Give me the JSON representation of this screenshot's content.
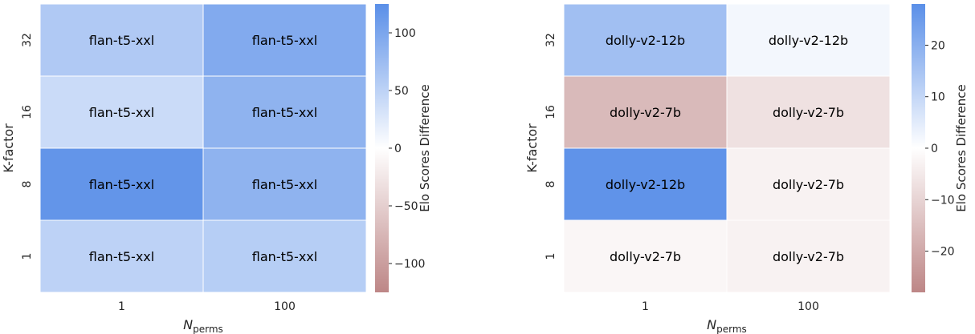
{
  "colors": {
    "negative": "#bd8686",
    "zero": "#ffffff",
    "positive": "#5a8fe8",
    "cell_border": "#ffffff",
    "text": "#262626"
  },
  "chart_data": [
    {
      "type": "heatmap",
      "x_categories": [
        "1",
        "100"
      ],
      "y_categories": [
        "32",
        "16",
        "8",
        "1"
      ],
      "values": [
        [
          60,
          95
        ],
        [
          40,
          85
        ],
        [
          118,
          85
        ],
        [
          50,
          55
        ]
      ],
      "cell_labels": [
        [
          "flan-t5-xxl",
          "flan-t5-xxl"
        ],
        [
          "flan-t5-xxl",
          "flan-t5-xxl"
        ],
        [
          "flan-t5-xxl",
          "flan-t5-xxl"
        ],
        [
          "flan-t5-xxl",
          "flan-t5-xxl"
        ]
      ],
      "xlabel": "N",
      "xlabel_sub": "perms",
      "ylabel": "K-factor",
      "colorbar": {
        "label": "Elo Scores Difference",
        "range": [
          -125,
          125
        ],
        "ticks": [
          100,
          50,
          0,
          -50,
          -100
        ],
        "tick_labels": [
          "100",
          "50",
          "0",
          "−50",
          "−100"
        ]
      }
    },
    {
      "type": "heatmap",
      "x_categories": [
        "1",
        "100"
      ],
      "y_categories": [
        "32",
        "16",
        "8",
        "1"
      ],
      "values": [
        [
          16,
          2
        ],
        [
          -16,
          -7
        ],
        [
          27,
          -3
        ],
        [
          -2,
          -3
        ]
      ],
      "cell_labels": [
        [
          "dolly-v2-12b",
          "dolly-v2-12b"
        ],
        [
          "dolly-v2-7b",
          "dolly-v2-7b"
        ],
        [
          "dolly-v2-12b",
          "dolly-v2-7b"
        ],
        [
          "dolly-v2-7b",
          "dolly-v2-7b"
        ]
      ],
      "xlabel": "N",
      "xlabel_sub": "perms",
      "ylabel": "K-factor",
      "colorbar": {
        "label": "Elo Scores Difference",
        "range": [
          -28,
          28
        ],
        "ticks": [
          20,
          10,
          0,
          -10,
          -20
        ],
        "tick_labels": [
          "20",
          "10",
          "0",
          "−10",
          "−20"
        ]
      }
    }
  ]
}
